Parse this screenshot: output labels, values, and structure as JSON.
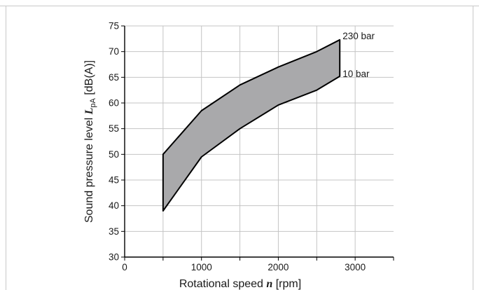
{
  "chart_data": {
    "type": "area",
    "xlabel": {
      "prefix": "Rotational speed ",
      "symbol": "n",
      "unit": " [rpm]"
    },
    "ylabel": {
      "prefix": "Sound pressure level ",
      "symbol": "L",
      "subscript": "pA",
      "unit": " [dB(A)]"
    },
    "xlim": [
      0,
      3500
    ],
    "ylim": [
      30,
      75
    ],
    "x_ticks": [
      0,
      1000,
      2000,
      3000
    ],
    "y_ticks": [
      30,
      35,
      40,
      45,
      50,
      55,
      60,
      65,
      70,
      75
    ],
    "grid": true,
    "series": [
      {
        "name": "230 bar",
        "x": [
          500,
          1000,
          1500,
          2000,
          2500,
          2800
        ],
        "y": [
          50,
          58.5,
          63.5,
          67,
          70,
          72.3
        ]
      },
      {
        "name": "10 bar",
        "x": [
          500,
          1000,
          1500,
          2000,
          2500,
          2800
        ],
        "y": [
          39,
          49.5,
          55,
          59.6,
          62.5,
          65.2
        ]
      }
    ]
  }
}
